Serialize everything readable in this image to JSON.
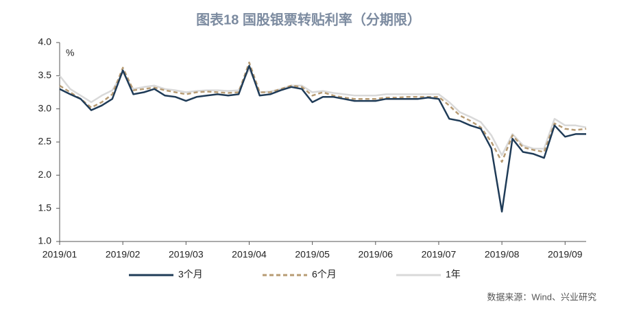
{
  "chart_data": {
    "type": "line",
    "title": "图表18  国股银票转贴利率（分期限）",
    "y_unit": "%",
    "source": "数据来源：Wind、兴业研究",
    "categories": [
      "2019/01",
      null,
      null,
      null,
      null,
      null,
      "2019/02",
      null,
      null,
      null,
      null,
      null,
      "2019/03",
      null,
      null,
      null,
      null,
      null,
      "2019/04",
      null,
      null,
      null,
      null,
      null,
      "2019/05",
      null,
      null,
      null,
      null,
      null,
      "2019/06",
      null,
      null,
      null,
      null,
      null,
      "2019/07",
      null,
      null,
      null,
      null,
      null,
      "2019/08",
      null,
      null,
      null,
      null,
      null,
      "2019/09",
      null,
      null
    ],
    "series": [
      {
        "name": "3个月",
        "color": "#1f3b57",
        "dashed": false,
        "values": [
          3.3,
          3.22,
          3.15,
          2.98,
          3.05,
          3.15,
          3.58,
          3.22,
          3.25,
          3.3,
          3.2,
          3.18,
          3.12,
          3.18,
          3.2,
          3.22,
          3.2,
          3.22,
          3.65,
          3.2,
          3.22,
          3.28,
          3.33,
          3.3,
          3.1,
          3.18,
          3.18,
          3.15,
          3.12,
          3.12,
          3.12,
          3.15,
          3.15,
          3.15,
          3.15,
          3.17,
          3.15,
          2.85,
          2.82,
          2.75,
          2.7,
          2.4,
          1.45,
          2.55,
          2.35,
          2.32,
          2.26,
          2.75,
          2.58,
          2.62,
          2.62
        ]
      },
      {
        "name": "6个月",
        "color": "#b79b73",
        "dashed": true,
        "values": [
          3.35,
          3.25,
          3.15,
          3.02,
          3.1,
          3.22,
          3.62,
          3.28,
          3.3,
          3.32,
          3.28,
          3.25,
          3.22,
          3.25,
          3.26,
          3.25,
          3.24,
          3.25,
          3.7,
          3.25,
          3.25,
          3.3,
          3.35,
          3.33,
          3.2,
          3.25,
          3.2,
          3.17,
          3.15,
          3.15,
          3.15,
          3.17,
          3.17,
          3.18,
          3.18,
          3.18,
          3.18,
          3.05,
          2.9,
          2.82,
          2.72,
          2.5,
          2.2,
          2.6,
          2.42,
          2.38,
          2.35,
          2.78,
          2.7,
          2.68,
          2.7
        ]
      },
      {
        "name": "1年",
        "color": "#d9d9d9",
        "dashed": false,
        "values": [
          3.5,
          3.3,
          3.2,
          3.1,
          3.2,
          3.28,
          3.55,
          3.3,
          3.33,
          3.35,
          3.3,
          3.28,
          3.25,
          3.27,
          3.28,
          3.28,
          3.27,
          3.28,
          3.6,
          3.25,
          3.26,
          3.3,
          3.35,
          3.35,
          3.25,
          3.27,
          3.24,
          3.22,
          3.2,
          3.2,
          3.2,
          3.22,
          3.22,
          3.22,
          3.22,
          3.22,
          3.22,
          3.1,
          2.95,
          2.88,
          2.8,
          2.6,
          2.3,
          2.62,
          2.45,
          2.4,
          2.4,
          2.85,
          2.75,
          2.75,
          2.72
        ]
      }
    ],
    "ylim": [
      1,
      4
    ],
    "yticks": [
      {
        "value": 1,
        "label": "1.0"
      },
      1.5,
      {
        "value": 2,
        "label": "2.0"
      },
      2.5,
      {
        "value": 3,
        "label": "3.0"
      },
      3.5,
      {
        "value": 4,
        "label": "4.0"
      }
    ],
    "grid": false
  }
}
